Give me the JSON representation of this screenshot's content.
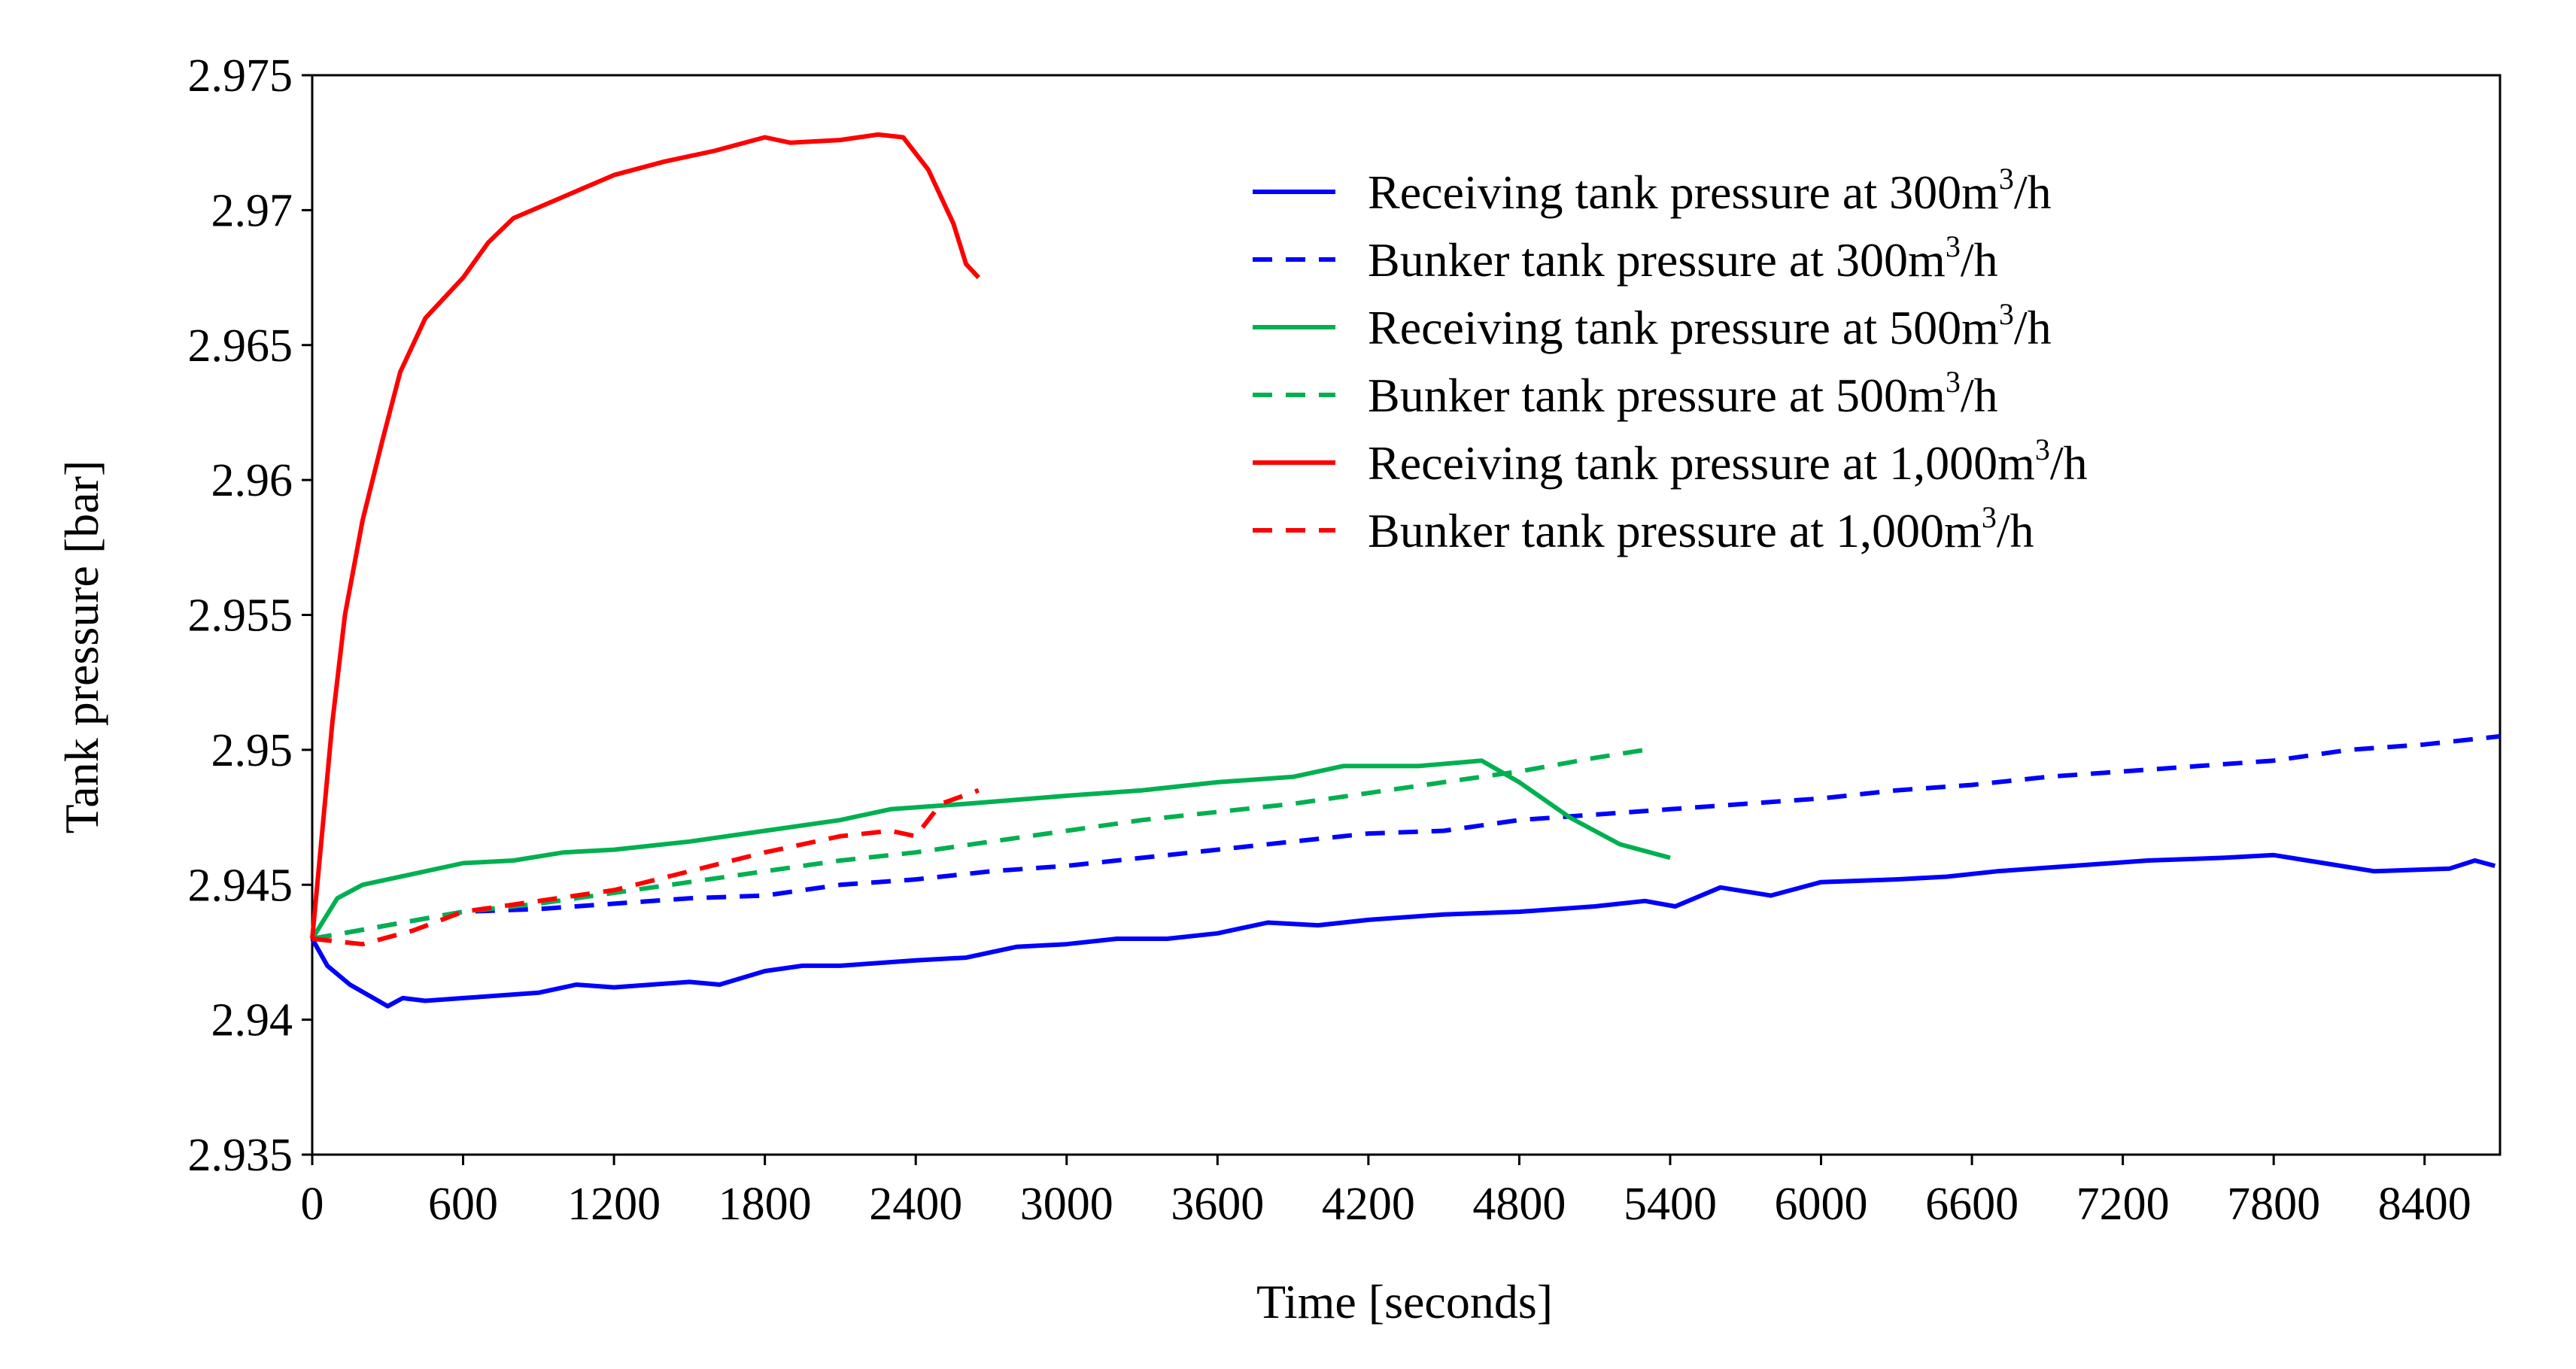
{
  "chart_data": {
    "type": "line",
    "title": "",
    "xlabel": "Time [seconds]",
    "ylabel": "Tank pressure [bar]",
    "xlim": [
      0,
      8700
    ],
    "ylim": [
      2.935,
      2.975
    ],
    "x_ticks": [
      0,
      600,
      1200,
      1800,
      2400,
      3000,
      3600,
      4200,
      4800,
      5400,
      6000,
      6600,
      7200,
      7800,
      8400
    ],
    "x_tick_labels": [
      "0",
      "600",
      "1200",
      "1800",
      "2400",
      "3000",
      "3600",
      "4200",
      "4800",
      "5400",
      "6000",
      "6600",
      "7200",
      "7800",
      "8400"
    ],
    "y_ticks": [
      2.935,
      2.94,
      2.945,
      2.95,
      2.955,
      2.96,
      2.965,
      2.97,
      2.975
    ],
    "y_tick_labels": [
      "2.935",
      "2.94",
      "2.945",
      "2.95",
      "2.955",
      "2.96",
      "2.965",
      "2.97",
      "2.975"
    ],
    "grid": false,
    "legend_position": "top-right",
    "series": [
      {
        "name": "Receiving tank pressure at 300m³/h",
        "label_prefix": "Receiving tank pressure at 300m",
        "label_sup": "3",
        "label_suffix": "/h",
        "color": "#0000ff",
        "style": "solid",
        "points": [
          [
            0,
            2.943
          ],
          [
            60,
            2.942
          ],
          [
            150,
            2.9413
          ],
          [
            300,
            2.9405
          ],
          [
            360,
            2.9408
          ],
          [
            450,
            2.9407
          ],
          [
            600,
            2.9408
          ],
          [
            900,
            2.941
          ],
          [
            1050,
            2.9413
          ],
          [
            1200,
            2.9412
          ],
          [
            1500,
            2.9414
          ],
          [
            1620,
            2.9413
          ],
          [
            1800,
            2.9418
          ],
          [
            1950,
            2.942
          ],
          [
            2100,
            2.942
          ],
          [
            2400,
            2.9422
          ],
          [
            2600,
            2.9423
          ],
          [
            2800,
            2.9427
          ],
          [
            3000,
            2.9428
          ],
          [
            3200,
            2.943
          ],
          [
            3400,
            2.943
          ],
          [
            3600,
            2.9432
          ],
          [
            3800,
            2.9436
          ],
          [
            4000,
            2.9435
          ],
          [
            4200,
            2.9437
          ],
          [
            4500,
            2.9439
          ],
          [
            4800,
            2.944
          ],
          [
            5100,
            2.9442
          ],
          [
            5300,
            2.9444
          ],
          [
            5420,
            2.9442
          ],
          [
            5600,
            2.9449
          ],
          [
            5800,
            2.9446
          ],
          [
            6000,
            2.9451
          ],
          [
            6300,
            2.9452
          ],
          [
            6500,
            2.9453
          ],
          [
            6700,
            2.9455
          ],
          [
            7000,
            2.9457
          ],
          [
            7300,
            2.9459
          ],
          [
            7600,
            2.946
          ],
          [
            7800,
            2.9461
          ],
          [
            8000,
            2.9458
          ],
          [
            8200,
            2.9455
          ],
          [
            8500,
            2.9456
          ],
          [
            8600,
            2.9459
          ],
          [
            8680,
            2.9457
          ]
        ]
      },
      {
        "name": "Bunker tank pressure at 300m³/h",
        "label_prefix": "Bunker tank pressure at 300m",
        "label_sup": "3",
        "label_suffix": "/h",
        "color": "#0000ff",
        "style": "dashed",
        "points": [
          [
            0,
            2.943
          ],
          [
            300,
            2.9435
          ],
          [
            600,
            2.944
          ],
          [
            900,
            2.9441
          ],
          [
            1200,
            2.9443
          ],
          [
            1500,
            2.9445
          ],
          [
            1800,
            2.9446
          ],
          [
            2100,
            2.945
          ],
          [
            2400,
            2.9452
          ],
          [
            2700,
            2.9455
          ],
          [
            3000,
            2.9457
          ],
          [
            3300,
            2.946
          ],
          [
            3600,
            2.9463
          ],
          [
            3900,
            2.9466
          ],
          [
            4200,
            2.9469
          ],
          [
            4500,
            2.947
          ],
          [
            4800,
            2.9474
          ],
          [
            5100,
            2.9476
          ],
          [
            5400,
            2.9478
          ],
          [
            5700,
            2.948
          ],
          [
            6000,
            2.9482
          ],
          [
            6300,
            2.9485
          ],
          [
            6600,
            2.9487
          ],
          [
            6900,
            2.949
          ],
          [
            7200,
            2.9492
          ],
          [
            7500,
            2.9494
          ],
          [
            7800,
            2.9496
          ],
          [
            8100,
            2.95
          ],
          [
            8400,
            2.9502
          ],
          [
            8700,
            2.9505
          ]
        ]
      },
      {
        "name": "Receiving tank pressure at 500m³/h",
        "label_prefix": "Receiving tank pressure at 500m",
        "label_sup": "3",
        "label_suffix": "/h",
        "color": "#00b050",
        "style": "solid",
        "points": [
          [
            0,
            2.943
          ],
          [
            100,
            2.9445
          ],
          [
            200,
            2.945
          ],
          [
            400,
            2.9454
          ],
          [
            600,
            2.9458
          ],
          [
            800,
            2.9459
          ],
          [
            1000,
            2.9462
          ],
          [
            1200,
            2.9463
          ],
          [
            1500,
            2.9466
          ],
          [
            1800,
            2.947
          ],
          [
            2100,
            2.9474
          ],
          [
            2300,
            2.9478
          ],
          [
            2600,
            2.948
          ],
          [
            3000,
            2.9483
          ],
          [
            3300,
            2.9485
          ],
          [
            3600,
            2.9488
          ],
          [
            3900,
            2.949
          ],
          [
            4100,
            2.9494
          ],
          [
            4400,
            2.9494
          ],
          [
            4650,
            2.9496
          ],
          [
            4800,
            2.9488
          ],
          [
            5000,
            2.9475
          ],
          [
            5200,
            2.9465
          ],
          [
            5400,
            2.946
          ]
        ]
      },
      {
        "name": "Bunker tank pressure at 500m³/h",
        "label_prefix": "Bunker tank pressure at 500m",
        "label_sup": "3",
        "label_suffix": "/h",
        "color": "#00b050",
        "style": "dashed",
        "points": [
          [
            0,
            2.943
          ],
          [
            300,
            2.9435
          ],
          [
            600,
            2.944
          ],
          [
            900,
            2.9443
          ],
          [
            1200,
            2.9447
          ],
          [
            1500,
            2.9451
          ],
          [
            1800,
            2.9455
          ],
          [
            2100,
            2.9459
          ],
          [
            2400,
            2.9462
          ],
          [
            2700,
            2.9466
          ],
          [
            3000,
            2.947
          ],
          [
            3300,
            2.9474
          ],
          [
            3600,
            2.9477
          ],
          [
            3900,
            2.948
          ],
          [
            4200,
            2.9484
          ],
          [
            4500,
            2.9488
          ],
          [
            4800,
            2.9492
          ],
          [
            5100,
            2.9497
          ],
          [
            5300,
            2.95
          ]
        ]
      },
      {
        "name": "Receiving tank pressure at 1,000m³/h",
        "label_prefix": "Receiving tank pressure at 1,000m",
        "label_sup": "3",
        "label_suffix": "/h",
        "color": "#ff0000",
        "style": "solid",
        "points": [
          [
            0,
            2.943
          ],
          [
            40,
            2.947
          ],
          [
            80,
            2.951
          ],
          [
            130,
            2.955
          ],
          [
            200,
            2.9585
          ],
          [
            280,
            2.9615
          ],
          [
            350,
            2.964
          ],
          [
            450,
            2.966
          ],
          [
            600,
            2.9675
          ],
          [
            700,
            2.9688
          ],
          [
            800,
            2.9697
          ],
          [
            1000,
            2.9705
          ],
          [
            1200,
            2.9713
          ],
          [
            1400,
            2.9718
          ],
          [
            1600,
            2.9722
          ],
          [
            1800,
            2.9727
          ],
          [
            1900,
            2.9725
          ],
          [
            2100,
            2.9726
          ],
          [
            2250,
            2.9728
          ],
          [
            2350,
            2.9727
          ],
          [
            2450,
            2.9715
          ],
          [
            2550,
            2.9695
          ],
          [
            2600,
            2.968
          ],
          [
            2650,
            2.9675
          ]
        ]
      },
      {
        "name": "Bunker tank pressure at 1,000m³/h",
        "label_prefix": "Bunker tank pressure at 1,000m",
        "label_sup": "3",
        "label_suffix": "/h",
        "color": "#ff0000",
        "style": "dashed",
        "points": [
          [
            0,
            2.943
          ],
          [
            200,
            2.9428
          ],
          [
            400,
            2.9433
          ],
          [
            600,
            2.944
          ],
          [
            900,
            2.9444
          ],
          [
            1200,
            2.9448
          ],
          [
            1500,
            2.9455
          ],
          [
            1800,
            2.9462
          ],
          [
            2100,
            2.9468
          ],
          [
            2300,
            2.947
          ],
          [
            2400,
            2.9468
          ],
          [
            2500,
            2.948
          ],
          [
            2650,
            2.9485
          ]
        ]
      }
    ]
  }
}
